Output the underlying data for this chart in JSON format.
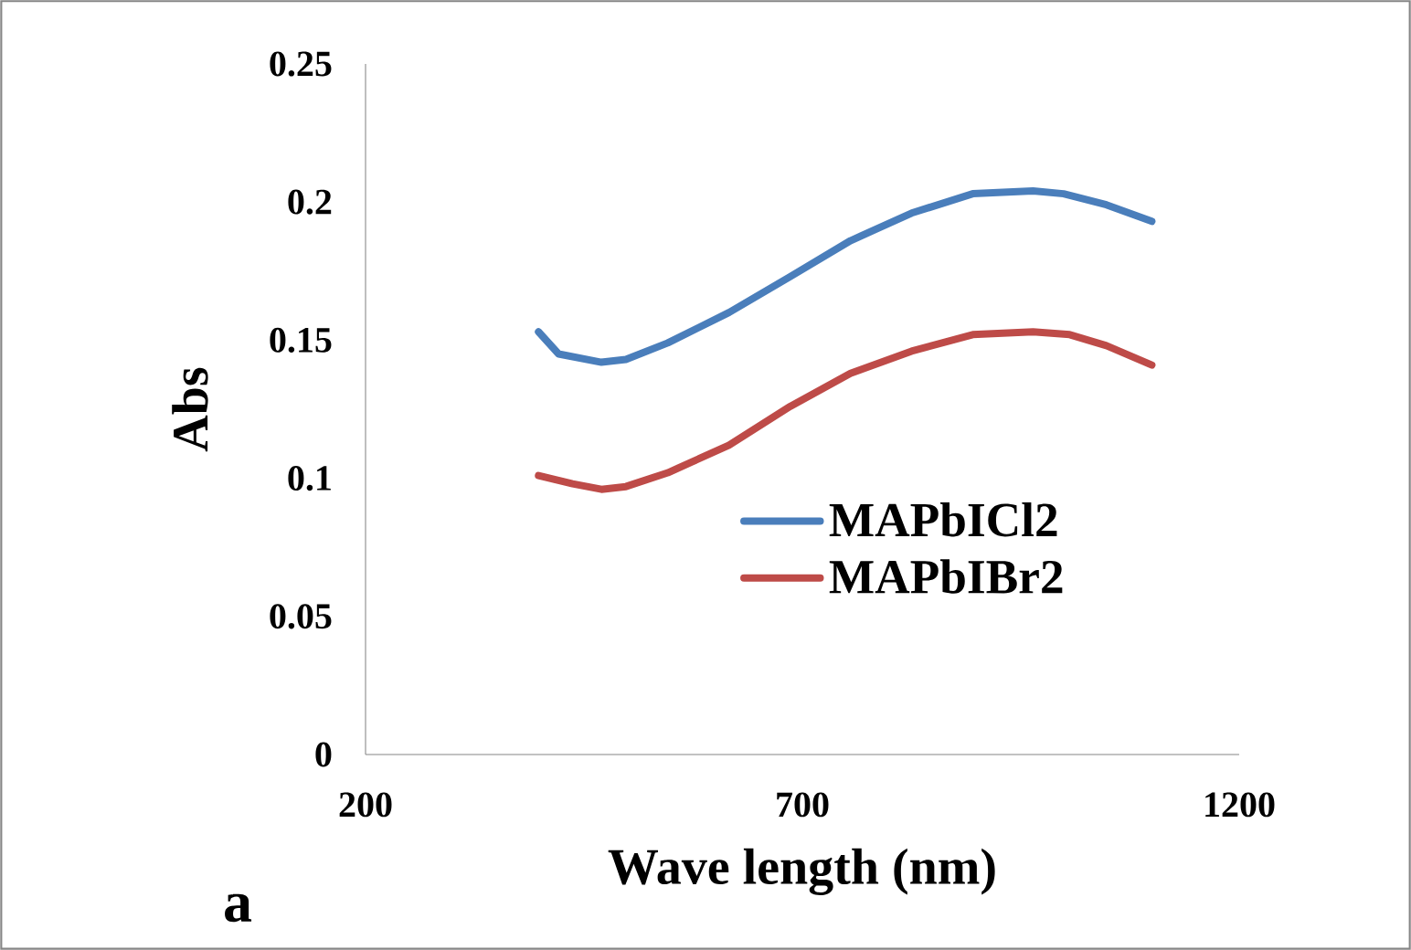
{
  "chart_data": {
    "type": "line",
    "xlabel": "Wave length (nm)",
    "ylabel": "Abs",
    "annotations": [
      "a"
    ],
    "xlim": [
      200,
      1200
    ],
    "xticks": [
      200,
      700,
      1200
    ],
    "ylim": [
      0,
      0.25
    ],
    "yticks": [
      0,
      0.05,
      0.1,
      0.15,
      0.2,
      0.25
    ],
    "grid": false,
    "legend": "right",
    "marker": "none",
    "line_style": "solid",
    "series": [
      {
        "name": "MAPbICl2",
        "color": "#4a7ebb",
        "x": [
          398,
          421,
          470,
          498,
          546,
          616,
          686,
          755,
          825,
          895,
          964,
          999,
          1048,
          1100
        ],
        "values": [
          0.153,
          0.145,
          0.142,
          0.143,
          0.149,
          0.16,
          0.173,
          0.186,
          0.196,
          0.203,
          0.204,
          0.203,
          0.199,
          0.193
        ]
      },
      {
        "name": "MAPbIBr2",
        "color": "#be4b48",
        "x": [
          398,
          437,
          470,
          498,
          546,
          616,
          686,
          755,
          825,
          895,
          964,
          1006,
          1048,
          1100
        ],
        "values": [
          0.101,
          0.098,
          0.096,
          0.097,
          0.102,
          0.112,
          0.126,
          0.138,
          0.146,
          0.152,
          0.153,
          0.152,
          0.148,
          0.141
        ]
      }
    ]
  }
}
